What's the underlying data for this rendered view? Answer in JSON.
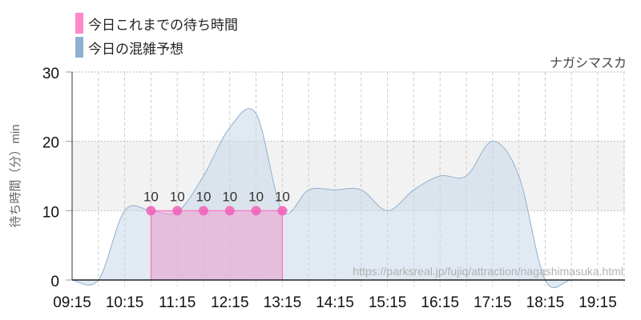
{
  "legend": [
    {
      "label": "今日これまでの待ち時間",
      "color": "#ff88c8"
    },
    {
      "label": "今日の混雑予想",
      "color": "#8fb0d0"
    }
  ],
  "attraction_name": "ナガシマスカ",
  "watermark": "https://parksreal.jp/fujiq/attraction/nagashimasuka.html",
  "chart_data": {
    "type": "area",
    "title": "",
    "xlabel": "",
    "ylabel": "待ち時間（分）min",
    "ylim": [
      0,
      30
    ],
    "yticks": [
      0,
      10,
      20,
      30
    ],
    "xticks": [
      "09:15",
      "10:15",
      "11:15",
      "12:15",
      "13:15",
      "14:15",
      "15:15",
      "16:15",
      "17:15",
      "18:15",
      "19:15"
    ],
    "highlight_band": [
      10,
      20
    ],
    "grid": true,
    "series": [
      {
        "name": "今日の混雑予想",
        "type": "area",
        "color": "#8fb0d0",
        "x": [
          "09:15",
          "09:45",
          "10:15",
          "10:45",
          "11:15",
          "11:45",
          "12:15",
          "12:45",
          "13:15",
          "13:45",
          "14:15",
          "14:45",
          "15:15",
          "15:45",
          "16:15",
          "16:45",
          "17:15",
          "17:45",
          "18:15",
          "18:45",
          "19:15",
          "19:45"
        ],
        "values": [
          0,
          0,
          10,
          10,
          9.8,
          15,
          22,
          24,
          10,
          13,
          13,
          13,
          10,
          13,
          15,
          15,
          20,
          15,
          0,
          0,
          0,
          0
        ]
      },
      {
        "name": "今日これまでの待ち時間",
        "type": "area",
        "color": "#ff88c8",
        "x": [
          "10:45",
          "11:15",
          "11:45",
          "12:15",
          "12:45",
          "13:15"
        ],
        "values": [
          10,
          10,
          10,
          10,
          10,
          10
        ],
        "data_labels": [
          "10",
          "10",
          "10",
          "10",
          "10",
          "10"
        ]
      }
    ]
  }
}
